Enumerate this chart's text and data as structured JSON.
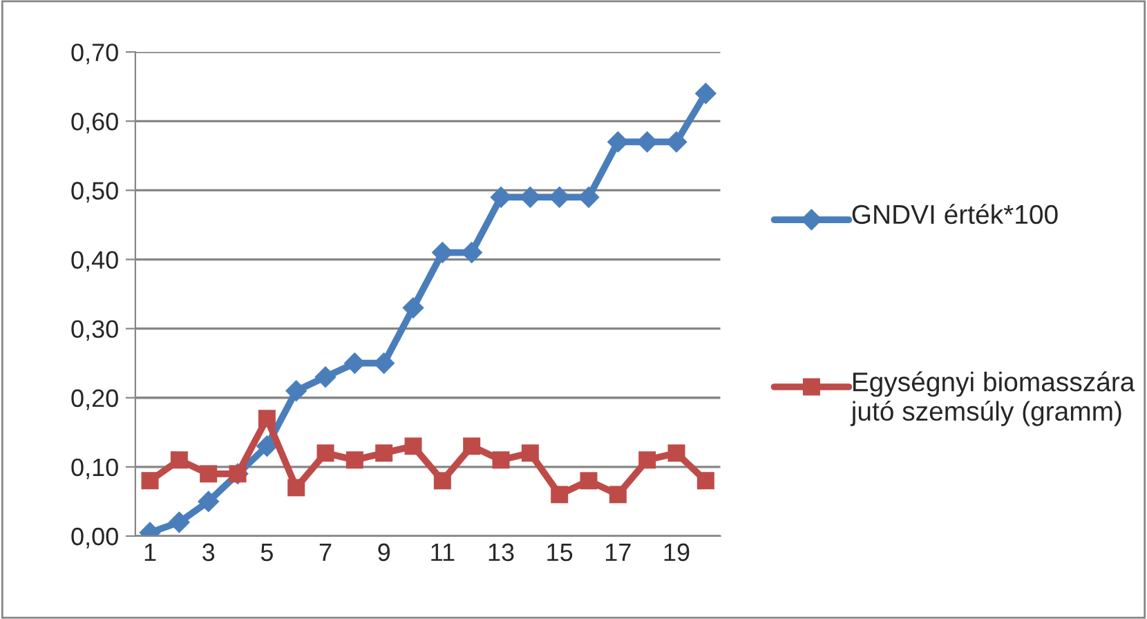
{
  "chart_data": {
    "type": "line",
    "categories": [
      "1",
      null,
      "3",
      null,
      "5",
      null,
      "7",
      null,
      "9",
      null,
      "11",
      null,
      "13",
      null,
      "15",
      null,
      "17",
      null,
      "19",
      null
    ],
    "series": [
      {
        "name": "GNDVI érték*100",
        "color": "#4a7ebb",
        "marker": "diamond",
        "values": [
          0.005,
          0.02,
          0.05,
          0.09,
          0.13,
          0.21,
          0.23,
          0.25,
          0.25,
          0.33,
          0.41,
          0.41,
          0.49,
          0.49,
          0.49,
          0.49,
          0.57,
          0.57,
          0.57,
          0.64
        ]
      },
      {
        "name": "Egységnyi biomasszára jutó szemsúly (gramm)",
        "color": "#be4b48",
        "marker": "square",
        "values": [
          0.08,
          0.11,
          0.09,
          0.09,
          0.17,
          0.07,
          0.12,
          0.11,
          0.12,
          0.13,
          0.08,
          0.13,
          0.11,
          0.12,
          0.06,
          0.08,
          0.06,
          0.11,
          0.12,
          0.08
        ]
      }
    ],
    "ylim": [
      0,
      0.7
    ],
    "yticks": [
      {
        "value": 0,
        "label": "0,00"
      },
      {
        "value": 0.1,
        "label": "0,10"
      },
      {
        "value": 0.2,
        "label": "0,20"
      },
      {
        "value": 0.3,
        "label": "0,30"
      },
      {
        "value": 0.4,
        "label": "0,40"
      },
      {
        "value": 0.5,
        "label": "0,50"
      },
      {
        "value": 0.6,
        "label": "0,60"
      },
      {
        "value": 0.7,
        "label": "0,70"
      }
    ],
    "grid": "y",
    "legend": "right"
  }
}
